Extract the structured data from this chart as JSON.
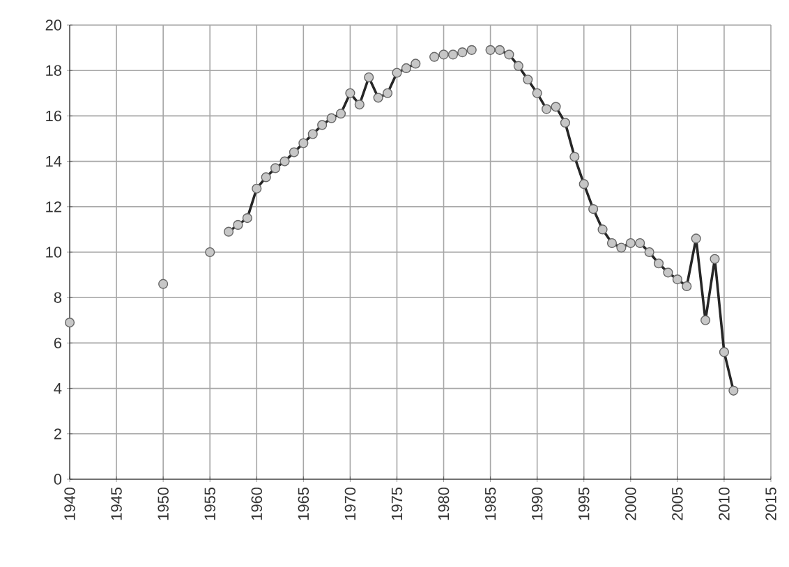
{
  "chart_data": {
    "type": "line",
    "x": [
      1940,
      1945,
      1950,
      1952,
      1955,
      1956,
      1957,
      1958,
      1959,
      1960,
      1961,
      1962,
      1963,
      1964,
      1965,
      1966,
      1967,
      1968,
      1969,
      1970,
      1971,
      1972,
      1973,
      1974,
      1975,
      1976,
      1977,
      1978,
      1979,
      1980,
      1981,
      1982,
      1983,
      1984,
      1985,
      1986,
      1987,
      1988,
      1989,
      1990,
      1991,
      1992,
      1993,
      1994,
      1995,
      1996,
      1997,
      1998,
      1999,
      2000,
      2001,
      2002,
      2003,
      2004,
      2005,
      2006,
      2007,
      2008,
      2009,
      2010,
      2011
    ],
    "values": [
      6.9,
      null,
      8.6,
      null,
      10.0,
      null,
      10.9,
      11.2,
      11.5,
      12.8,
      13.3,
      13.7,
      14.0,
      14.4,
      14.8,
      15.2,
      15.6,
      15.9,
      16.1,
      17.0,
      16.5,
      17.7,
      16.8,
      17.0,
      17.9,
      18.1,
      18.3,
      null,
      18.6,
      18.7,
      18.7,
      18.8,
      18.9,
      null,
      18.9,
      18.9,
      18.7,
      18.2,
      17.6,
      17.0,
      16.3,
      16.4,
      15.7,
      14.2,
      13.0,
      11.9,
      11.0,
      10.4,
      10.2,
      10.4,
      10.4,
      10.0,
      9.5,
      9.1,
      8.8,
      8.5,
      10.6,
      7.0,
      9.7,
      5.6,
      3.9
    ],
    "color": "#c7c7c7",
    "marker": "circle",
    "line_style": "solid",
    "grid": true,
    "xlim": [
      1940,
      2015
    ],
    "ylim": [
      0,
      20
    ],
    "xticks": [
      1940,
      1945,
      1950,
      1955,
      1960,
      1965,
      1970,
      1975,
      1980,
      1985,
      1990,
      1995,
      2000,
      2005,
      2010,
      2015
    ],
    "yticks": [
      0,
      2,
      4,
      6,
      8,
      10,
      12,
      14,
      16,
      18,
      20
    ]
  }
}
